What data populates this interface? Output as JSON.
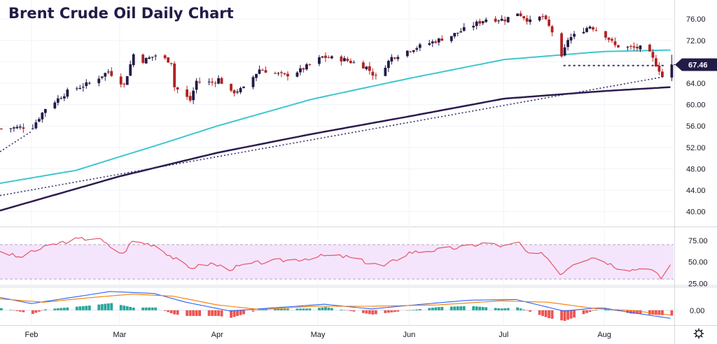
{
  "chart_data": {
    "type": "candlestick",
    "title": "Brent Crude Oil Daily Chart",
    "last_price": "67.46",
    "colors": {
      "up": "#241a47",
      "down": "#b22222",
      "sma_fast": "#3fc6cf",
      "sma_slow": "#2d1b4e",
      "trendline": "#3a2f6b",
      "support": "#3a2f6b",
      "rsi": "#e5536a",
      "rsi_band": "#f1dcfb",
      "macd": "#2962ff",
      "signal": "#f57c00",
      "hist_pos": "#26a69a",
      "hist_neg": "#ef5350"
    },
    "x_axis": {
      "range": [
        "2021-01-22",
        "2021-08-24"
      ],
      "labels": [
        {
          "label": "Feb",
          "date": "2021-02-01"
        },
        {
          "label": "Mar",
          "date": "2021-03-01"
        },
        {
          "label": "Apr",
          "date": "2021-04-01"
        },
        {
          "label": "May",
          "date": "2021-05-03"
        },
        {
          "label": "Jun",
          "date": "2021-06-01"
        },
        {
          "label": "Jul",
          "date": "2021-07-01"
        },
        {
          "label": "Aug",
          "date": "2021-08-02"
        }
      ]
    },
    "price_axis": {
      "range": [
        38.0,
        78.5
      ],
      "ticks": [
        "76.00",
        "72.00",
        "68.00",
        "64.00",
        "60.00",
        "56.00",
        "52.00",
        "48.00",
        "44.00",
        "40.00"
      ],
      "grid": true
    },
    "price_path": [
      [
        "2021-01-22",
        55.5
      ],
      [
        "2021-02-01",
        55.9
      ],
      [
        "2021-02-05",
        59.3
      ],
      [
        "2021-02-12",
        62.4
      ],
      [
        "2021-02-19",
        64.0
      ],
      [
        "2021-02-25",
        66.2
      ],
      [
        "2021-03-02",
        63.7
      ],
      [
        "2021-03-05",
        69.4
      ],
      [
        "2021-03-08",
        68.2
      ],
      [
        "2021-03-12",
        69.2
      ],
      [
        "2021-03-17",
        68.0
      ],
      [
        "2021-03-18",
        63.3
      ],
      [
        "2021-03-23",
        60.8
      ],
      [
        "2021-03-25",
        64.4
      ],
      [
        "2021-03-30",
        64.1
      ],
      [
        "2021-04-01",
        64.8
      ],
      [
        "2021-04-05",
        62.2
      ],
      [
        "2021-04-09",
        63.0
      ],
      [
        "2021-04-14",
        66.6
      ],
      [
        "2021-04-22",
        65.4
      ],
      [
        "2021-04-27",
        66.4
      ],
      [
        "2021-05-04",
        68.9
      ],
      [
        "2021-05-11",
        68.4
      ],
      [
        "2021-05-18",
        67.0
      ],
      [
        "2021-05-21",
        65.1
      ],
      [
        "2021-05-26",
        68.8
      ],
      [
        "2021-06-01",
        70.3
      ],
      [
        "2021-06-08",
        71.7
      ],
      [
        "2021-06-14",
        72.9
      ],
      [
        "2021-06-21",
        74.9
      ],
      [
        "2021-06-25",
        76.0
      ],
      [
        "2021-07-01",
        75.9
      ],
      [
        "2021-07-05",
        77.2
      ],
      [
        "2021-07-09",
        75.5
      ],
      [
        "2021-07-13",
        76.5
      ],
      [
        "2021-07-16",
        73.6
      ],
      [
        "2021-07-19",
        68.6
      ],
      [
        "2021-07-21",
        72.2
      ],
      [
        "2021-07-28",
        74.7
      ],
      [
        "2021-08-02",
        72.9
      ],
      [
        "2021-08-05",
        71.0
      ],
      [
        "2021-08-10",
        70.6
      ],
      [
        "2021-08-13",
        70.6
      ],
      [
        "2021-08-16",
        69.5
      ],
      [
        "2021-08-19",
        66.5
      ],
      [
        "2021-08-20",
        65.2
      ],
      [
        "2021-08-23",
        69.0
      ]
    ],
    "series": [
      {
        "kind": "sma_fast",
        "points": [
          [
            "2021-01-22",
            45.3
          ],
          [
            "2021-02-15",
            47.7
          ],
          [
            "2021-03-15",
            52.8
          ],
          [
            "2021-04-01",
            56.0
          ],
          [
            "2021-05-01",
            61.0
          ],
          [
            "2021-06-01",
            64.9
          ],
          [
            "2021-07-01",
            68.4
          ],
          [
            "2021-08-01",
            69.9
          ],
          [
            "2021-08-24",
            70.2
          ]
        ]
      },
      {
        "kind": "sma_slow",
        "points": [
          [
            "2021-01-22",
            40.2
          ],
          [
            "2021-03-01",
            46.6
          ],
          [
            "2021-04-01",
            51.0
          ],
          [
            "2021-05-01",
            54.5
          ],
          [
            "2021-06-01",
            57.8
          ],
          [
            "2021-07-01",
            61.1
          ],
          [
            "2021-08-01",
            62.5
          ],
          [
            "2021-08-24",
            63.3
          ]
        ]
      },
      {
        "kind": "trendline",
        "points": [
          [
            "2021-01-22",
            51.2
          ],
          [
            "2021-02-01",
            55.0
          ]
        ]
      },
      {
        "kind": "trendline",
        "points": [
          [
            "2021-01-22",
            43.0
          ],
          [
            "2021-08-21",
            65.2
          ]
        ]
      },
      {
        "kind": "support",
        "points": [
          [
            "2021-07-20",
            67.3
          ],
          [
            "2021-08-21",
            67.3
          ]
        ]
      }
    ],
    "rsi": {
      "levels": [
        75.0,
        50.0,
        25.0
      ],
      "tick_labels": [
        "75.00",
        "50.00",
        "25.00"
      ],
      "band": [
        30,
        70
      ],
      "range": [
        22,
        87
      ],
      "values": [
        [
          "2021-01-22",
          63
        ],
        [
          "2021-01-28",
          55
        ],
        [
          "2021-02-03",
          64
        ],
        [
          "2021-02-10",
          72
        ],
        [
          "2021-02-15",
          76
        ],
        [
          "2021-02-22",
          78
        ],
        [
          "2021-02-25",
          70
        ],
        [
          "2021-03-02",
          59
        ],
        [
          "2021-03-05",
          74
        ],
        [
          "2021-03-12",
          70
        ],
        [
          "2021-03-18",
          55
        ],
        [
          "2021-03-23",
          43
        ],
        [
          "2021-03-30",
          48
        ],
        [
          "2021-04-05",
          42
        ],
        [
          "2021-04-12",
          48
        ],
        [
          "2021-04-19",
          51
        ],
        [
          "2021-04-27",
          53
        ],
        [
          "2021-05-05",
          57
        ],
        [
          "2021-05-12",
          56
        ],
        [
          "2021-05-19",
          49
        ],
        [
          "2021-05-24",
          45
        ],
        [
          "2021-06-01",
          61
        ],
        [
          "2021-06-10",
          64
        ],
        [
          "2021-06-18",
          67
        ],
        [
          "2021-06-25",
          72
        ],
        [
          "2021-07-01",
          68
        ],
        [
          "2021-07-06",
          72
        ],
        [
          "2021-07-09",
          58
        ],
        [
          "2021-07-14",
          59
        ],
        [
          "2021-07-19",
          36
        ],
        [
          "2021-07-23",
          48
        ],
        [
          "2021-07-29",
          56
        ],
        [
          "2021-08-02",
          51
        ],
        [
          "2021-08-06",
          44
        ],
        [
          "2021-08-11",
          41
        ],
        [
          "2021-08-16",
          44
        ],
        [
          "2021-08-20",
          31
        ],
        [
          "2021-08-23",
          47
        ]
      ]
    },
    "macd": {
      "tick_label": "0.00",
      "range": [
        -1.9,
        3.1
      ],
      "macd_values": [
        [
          "2021-01-22",
          1.9
        ],
        [
          "2021-02-01",
          1.0
        ],
        [
          "2021-02-15",
          2.0
        ],
        [
          "2021-02-26",
          2.8
        ],
        [
          "2021-03-12",
          2.5
        ],
        [
          "2021-03-22",
          1.2
        ],
        [
          "2021-04-05",
          -0.1
        ],
        [
          "2021-04-20",
          0.4
        ],
        [
          "2021-05-05",
          0.9
        ],
        [
          "2021-05-20",
          0.2
        ],
        [
          "2021-06-05",
          0.9
        ],
        [
          "2021-06-20",
          1.5
        ],
        [
          "2021-07-05",
          1.6
        ],
        [
          "2021-07-20",
          -0.1
        ],
        [
          "2021-08-01",
          0.4
        ],
        [
          "2021-08-10",
          -0.3
        ],
        [
          "2021-08-23",
          -1.2
        ]
      ],
      "signal_values": [
        [
          "2021-01-22",
          1.7
        ],
        [
          "2021-02-05",
          1.2
        ],
        [
          "2021-02-20",
          1.9
        ],
        [
          "2021-03-05",
          2.4
        ],
        [
          "2021-03-18",
          2.1
        ],
        [
          "2021-04-01",
          0.8
        ],
        [
          "2021-04-15",
          0.1
        ],
        [
          "2021-05-01",
          0.6
        ],
        [
          "2021-05-20",
          0.6
        ],
        [
          "2021-06-10",
          0.8
        ],
        [
          "2021-06-30",
          1.4
        ],
        [
          "2021-07-15",
          1.2
        ],
        [
          "2021-07-31",
          0.2
        ],
        [
          "2021-08-10",
          0.0
        ],
        [
          "2021-08-23",
          -0.7
        ]
      ]
    }
  }
}
